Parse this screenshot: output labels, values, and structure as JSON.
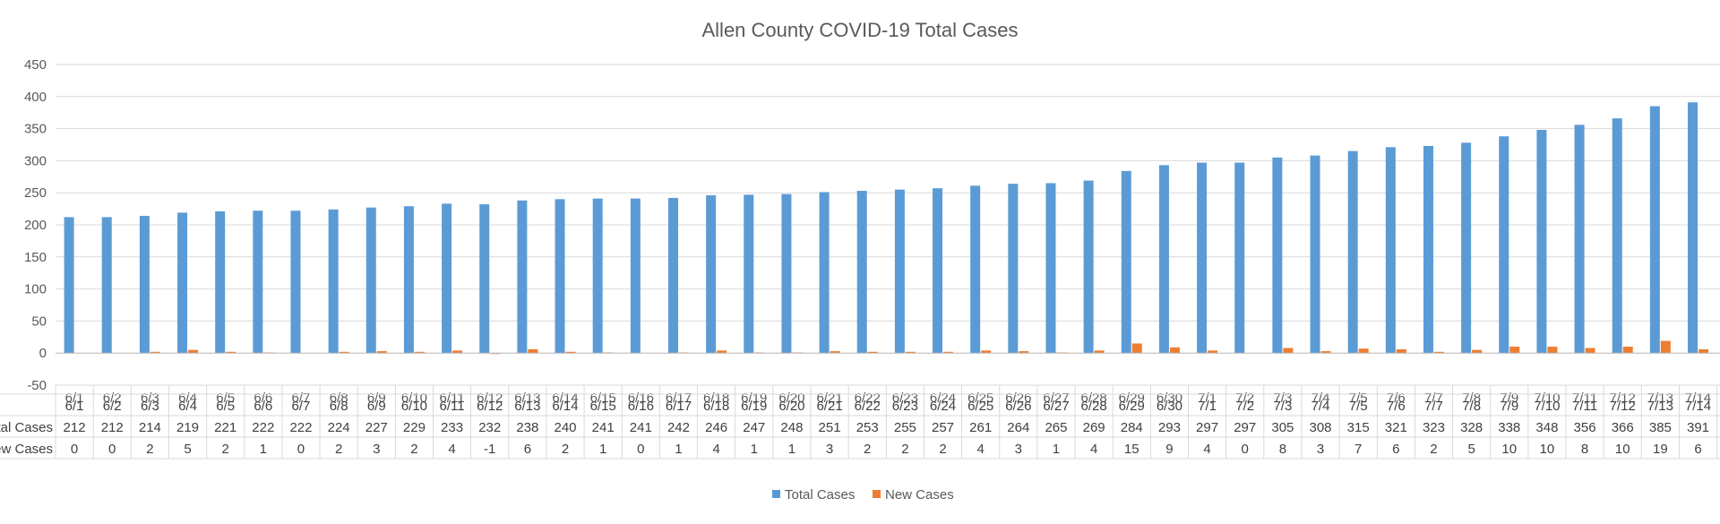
{
  "chart_data": {
    "type": "bar",
    "title": "Allen County COVID-19 Total Cases",
    "ylim": [
      -50,
      450
    ],
    "yticks": [
      -50,
      0,
      50,
      100,
      150,
      200,
      250,
      300,
      350,
      400,
      450
    ],
    "grid": true,
    "legend_position": "bottom",
    "has_data_table": true,
    "categories": [
      "6/1",
      "6/2",
      "6/3",
      "6/4",
      "6/5",
      "6/6",
      "6/7",
      "6/8",
      "6/9",
      "6/10",
      "6/11",
      "6/12",
      "6/13",
      "6/14",
      "6/15",
      "6/16",
      "6/17",
      "6/18",
      "6/19",
      "6/20",
      "6/21",
      "6/22",
      "6/23",
      "6/24",
      "6/25",
      "6/26",
      "6/27",
      "6/28",
      "6/29",
      "6/30",
      "7/1",
      "7/2",
      "7/3",
      "7/4",
      "7/5",
      "7/6",
      "7/7",
      "7/8",
      "7/9",
      "7/10",
      "7/11",
      "7/12",
      "7/13",
      "7/14"
    ],
    "table_row_labels": [
      "otal Cases",
      "ew Cases"
    ],
    "series": [
      {
        "name": "Total Cases",
        "color": "#5B9BD5",
        "values": [
          212,
          212,
          214,
          219,
          221,
          222,
          222,
          224,
          227,
          229,
          233,
          232,
          238,
          240,
          241,
          241,
          242,
          246,
          247,
          248,
          251,
          253,
          255,
          257,
          261,
          264,
          265,
          269,
          284,
          293,
          297,
          297,
          305,
          308,
          315,
          321,
          323,
          328,
          338,
          348,
          356,
          366,
          385,
          391
        ]
      },
      {
        "name": "New Cases",
        "color": "#ED7D31",
        "values": [
          0,
          0,
          2,
          5,
          2,
          1,
          0,
          2,
          3,
          2,
          4,
          -1,
          6,
          2,
          1,
          0,
          1,
          4,
          1,
          1,
          3,
          2,
          2,
          2,
          4,
          3,
          1,
          4,
          15,
          9,
          4,
          0,
          8,
          3,
          7,
          6,
          2,
          5,
          10,
          10,
          8,
          10,
          19,
          6
        ]
      }
    ]
  }
}
